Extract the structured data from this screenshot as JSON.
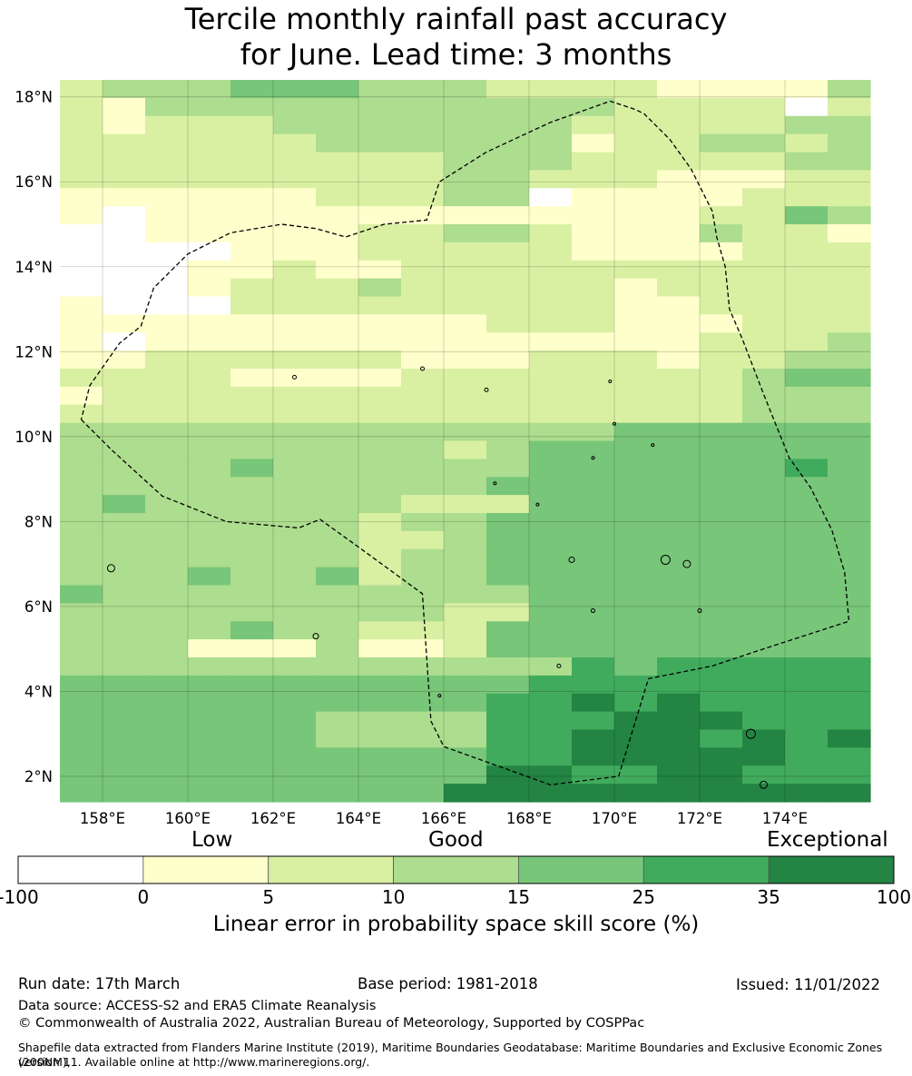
{
  "title": {
    "line1": "Tercile monthly rainfall past accuracy",
    "line2": "for June. Lead time: 3 months"
  },
  "map": {
    "lon_range": [
      157,
      176
    ],
    "lat_range": [
      1.4,
      18.4
    ],
    "lat_ticks": [
      {
        "value": 18,
        "label": "18°N"
      },
      {
        "value": 16,
        "label": "16°N"
      },
      {
        "value": 14,
        "label": "14°N"
      },
      {
        "value": 12,
        "label": "12°N"
      },
      {
        "value": 10,
        "label": "10°N"
      },
      {
        "value": 8,
        "label": "8°N"
      },
      {
        "value": 6,
        "label": "6°N"
      },
      {
        "value": 4,
        "label": "4°N"
      },
      {
        "value": 2,
        "label": "2°N"
      }
    ],
    "lon_ticks": [
      {
        "value": 158,
        "label": "158°E"
      },
      {
        "value": 160,
        "label": "160°E"
      },
      {
        "value": 162,
        "label": "162°E"
      },
      {
        "value": 164,
        "label": "164°E"
      },
      {
        "value": 166,
        "label": "166°E"
      },
      {
        "value": 168,
        "label": "168°E"
      },
      {
        "value": 170,
        "label": "170°E"
      },
      {
        "value": 172,
        "label": "172°E"
      },
      {
        "value": 174,
        "label": "174°E"
      }
    ],
    "eez_boundary": [
      [
        157.5,
        10.4
      ],
      [
        158.2,
        9.7
      ],
      [
        159.4,
        8.6
      ],
      [
        160.9,
        8.0
      ],
      [
        162.6,
        7.85
      ],
      [
        163.1,
        8.05
      ],
      [
        164.0,
        7.4
      ],
      [
        165.5,
        6.3
      ],
      [
        165.7,
        3.3
      ],
      [
        166.0,
        2.7
      ],
      [
        168.5,
        1.8
      ],
      [
        170.1,
        2.0
      ],
      [
        170.8,
        4.3
      ],
      [
        172.3,
        4.6
      ],
      [
        173.5,
        5.0
      ],
      [
        175.5,
        5.65
      ],
      [
        175.4,
        6.8
      ],
      [
        175.1,
        7.8
      ],
      [
        174.6,
        8.8
      ],
      [
        174.1,
        9.5
      ],
      [
        173.5,
        11.0
      ],
      [
        173.0,
        12.3
      ],
      [
        172.7,
        13.0
      ],
      [
        172.6,
        14.0
      ],
      [
        172.4,
        14.7
      ],
      [
        172.3,
        15.3
      ],
      [
        171.8,
        16.3
      ],
      [
        171.3,
        17.0
      ],
      [
        170.7,
        17.6
      ],
      [
        170.5,
        17.7
      ],
      [
        169.9,
        17.9
      ],
      [
        168.5,
        17.4
      ],
      [
        167.0,
        16.7
      ],
      [
        165.9,
        16.0
      ],
      [
        165.6,
        15.1
      ],
      [
        164.6,
        15.0
      ],
      [
        163.7,
        14.7
      ],
      [
        163.0,
        14.9
      ],
      [
        162.2,
        15.0
      ],
      [
        161.0,
        14.8
      ],
      [
        160.0,
        14.3
      ],
      [
        159.2,
        13.5
      ],
      [
        158.9,
        12.6
      ],
      [
        158.4,
        12.2
      ],
      [
        157.7,
        11.2
      ],
      [
        157.5,
        10.4
      ]
    ],
    "grid_color_codes": [
      "2333444333222211113",
      "2133333333333222202",
      "2122233333332222233",
      "2222223333331223323",
      "2222222223332222233",
      "2222222223322211122",
      "1111112223301111222",
      "1011111111111112243",
      "0011111223321113221",
      "0000111222221111222",
      "0001121122222222222",
      "0001222322222122222",
      "1000222222222112222",
      "1111111111222111222",
      "1011111111111112223",
      "1122222211122212233",
      "2222111122222222344",
      "1222222222222222333",
      "2222222222222222333",
      "3333333333333444444",
      "3333333332344444444",
      "3333433333344444454",
      "3333333333444444444",
      "3433333322244444444",
      "3333333233444444444",
      "3333333223444444444",
      "3333333233444444444",
      "3334334233444444444",
      "4333333333344444444",
      "3333333332244444444",
      "3333433222444444444",
      "3331113112444444444",
      "3333333333335455555",
      "4444444444455555555",
      "4444444444556565555",
      "4444443333555666555",
      "4444443333556665656",
      "4444444444556666655",
      "4444444444665566555",
      "4444444446666666666"
    ]
  },
  "colorbar": {
    "bins": [
      {
        "color": "#ffffff"
      },
      {
        "color": "#ffffcc"
      },
      {
        "color": "#d9f0a3"
      },
      {
        "color": "#addd8e"
      },
      {
        "color": "#78c679"
      },
      {
        "color": "#41ab5d"
      },
      {
        "color": "#238443"
      }
    ],
    "tick_labels": [
      "-100",
      "0",
      "5",
      "10",
      "15",
      "25",
      "35",
      "100"
    ],
    "categories": {
      "low": "Low",
      "good": "Good",
      "exceptional": "Exceptional"
    },
    "axis_label": "Linear error in probability space skill score (%)"
  },
  "footer": {
    "run_date": "Run date: 17th March",
    "base_period": "Base period: 1981-2018",
    "issued": "Issued: 11/01/2022",
    "data_source": "Data source: ACCESS-S2 and ERA5 Climate Reanalysis",
    "copyright": "© Commonwealth of Australia 2022, Australian Bureau of Meteorology, Supported by COSPPac",
    "shapefile_line1": "Shapefile data extracted from Flanders Marine Institute (2019), Maritime Boundaries Geodatabase: Maritime Boundaries and Exclusive Economic Zones (200NM),",
    "shapefile_line2": "version 11. Available online at http://www.marineregions.org/."
  }
}
